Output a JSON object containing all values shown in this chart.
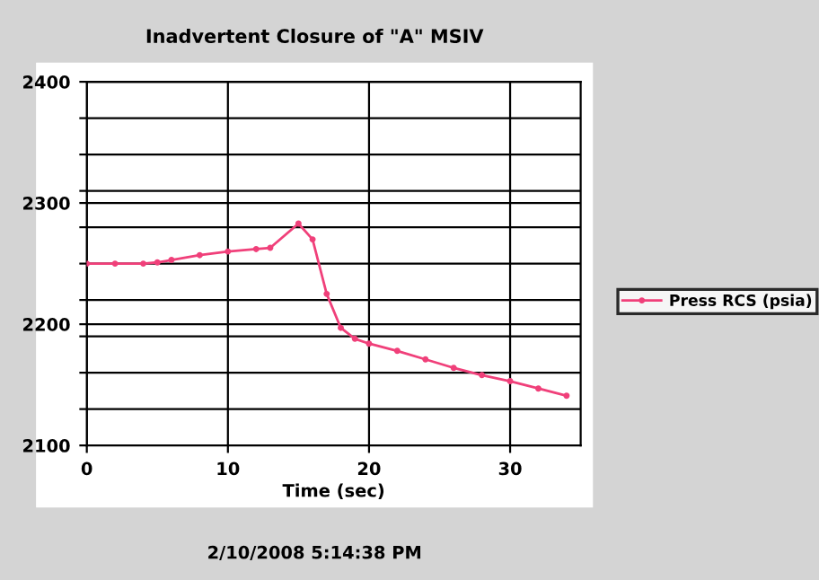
{
  "chart_data": {
    "type": "line",
    "title": "Inadvertent Closure of \"A\" MSIV",
    "xlabel": "Time (sec)",
    "annotations": [
      "2/10/2008 5:14:38 PM"
    ],
    "x": [
      0,
      2,
      4,
      5,
      6,
      8,
      10,
      12,
      13,
      15,
      16,
      17,
      18,
      19,
      20,
      22,
      24,
      26,
      28,
      30,
      32,
      34
    ],
    "series": [
      {
        "name": "Press RCS (psia)",
        "color": "#f0407a",
        "values": [
          2250,
          2250,
          2250,
          2251,
          2253,
          2257,
          2260,
          2262,
          2263,
          2283,
          2270,
          2225,
          2197,
          2188,
          2184,
          2178,
          2171,
          2164,
          2158,
          2153,
          2147,
          2141
        ]
      }
    ],
    "xlim": [
      0,
      35
    ],
    "xticks": [
      0,
      10,
      20,
      30
    ],
    "ylim": [
      2100,
      2400
    ],
    "yticks": [
      2100,
      {
        "value": 2130,
        "label": null
      },
      {
        "value": 2160,
        "label": null
      },
      {
        "value": 2190,
        "label": null
      },
      2200,
      {
        "value": 2220,
        "label": null
      },
      {
        "value": 2250,
        "label": null
      },
      {
        "value": 2280,
        "label": null
      },
      2300,
      {
        "value": 2310,
        "label": null
      },
      {
        "value": 2340,
        "label": null
      },
      {
        "value": 2370,
        "label": null
      },
      2400
    ],
    "grid": true,
    "legend": "right",
    "marker": "circle",
    "line_style": "solid"
  }
}
